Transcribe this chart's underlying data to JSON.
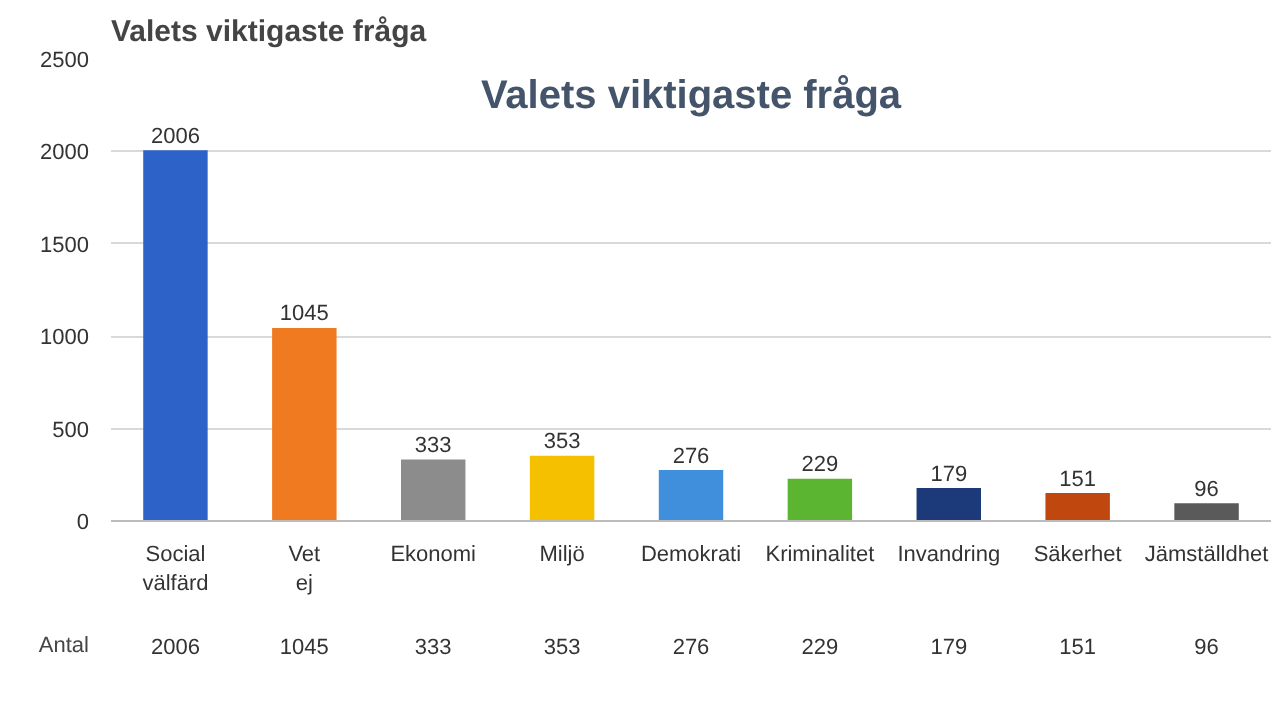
{
  "chart_data": {
    "type": "bar",
    "title": "Valets viktigaste fråga",
    "subtitle": "Valets viktigaste fråga",
    "categories": [
      "Social välfärd",
      "Vet ej",
      "Ekonomi",
      "Miljö",
      "Demokrati",
      "Kriminalitet",
      "Invandring",
      "Säkerhet",
      "Jämställdhet"
    ],
    "series": [
      {
        "name": "Antal",
        "values": [
          2006,
          1045,
          333,
          353,
          276,
          229,
          179,
          151,
          96
        ],
        "value_labels": [
          "2006",
          "1045",
          "333",
          "353",
          "276",
          "229",
          "179",
          "151",
          "96"
        ]
      }
    ],
    "colors": [
      "#2d62c9",
      "#f07a20",
      "#8c8c8c",
      "#f5c000",
      "#3f8fdc",
      "#5cb531",
      "#1c3a7a",
      "#c0480f",
      "#5a5a5a"
    ],
    "ylim": [
      0,
      2500
    ],
    "yticks": [
      0,
      500,
      1000,
      1500,
      2000,
      2500
    ],
    "grid": "y",
    "annotations": [
      "2006",
      "1045",
      "333",
      "353",
      "276",
      "229",
      "179",
      "151",
      "96"
    ]
  }
}
